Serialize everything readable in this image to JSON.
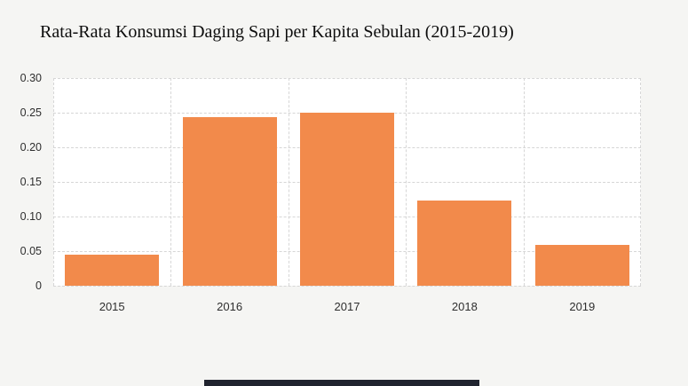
{
  "page": {
    "background_color": "#f5f5f3",
    "plot_background_color": "#ffffff",
    "gridline_color": "#d6d6d6",
    "text_color": "#2e2e2e"
  },
  "chart_data": {
    "type": "bar",
    "title": "Rata-Rata Konsumsi Daging Sapi per Kapita Sebulan (2015-2019)",
    "categories": [
      "2015",
      "2016",
      "2017",
      "2018",
      "2019"
    ],
    "values": [
      0.045,
      0.243,
      0.25,
      0.123,
      0.059
    ],
    "xlabel": "",
    "ylabel": "",
    "ylim": [
      0,
      0.3
    ],
    "yticks": [
      0,
      0.05,
      0.1,
      0.15,
      0.2,
      0.25,
      0.3
    ],
    "ytick_labels": [
      "0",
      "0.05",
      "0.10",
      "0.15",
      "0.20",
      "0.25",
      "0.30"
    ],
    "bar_color": "#f28a4b",
    "grid": "dashed-both-axes",
    "legend": "none"
  }
}
